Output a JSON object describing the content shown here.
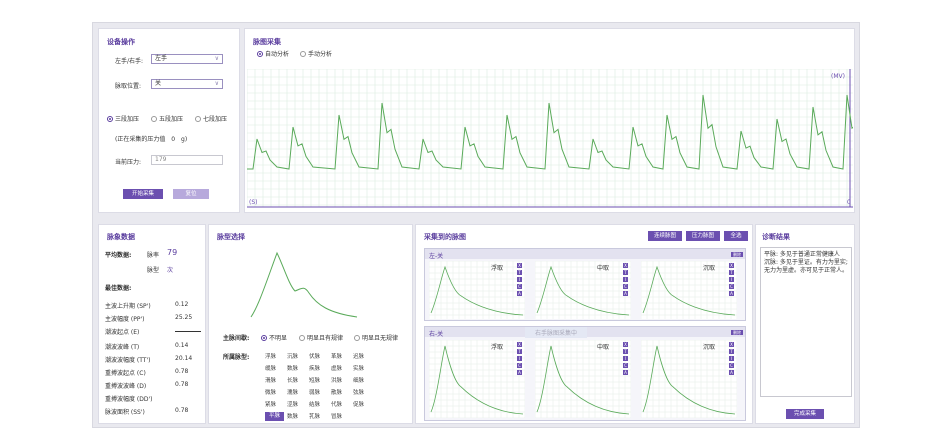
{
  "device": {
    "title": "设备操作",
    "hand_label": "左手/右手:",
    "hand_value": "左手",
    "position_label": "脉取位置:",
    "position_value": "关",
    "pressure_modes": [
      "三段加压",
      "五段加压",
      "七段加压"
    ],
    "pressure_status_prefix": "(正在采集的压力值",
    "pressure_status_value": "0",
    "pressure_status_unit": "g)",
    "current_pressure_label": "当前压力:",
    "current_pressure_value": "179",
    "start_button": "开始采集",
    "reset_button": "复位"
  },
  "capture": {
    "title": "脉图采集",
    "modes": [
      "自动分析",
      "手动分析"
    ],
    "y_unit": "(MV)",
    "x_unit": "(S)",
    "x_zero": "0"
  },
  "pulse_data": {
    "title": "脉象数据",
    "avg_label": "平均数据:",
    "rate_label": "脉率",
    "rate_value": "79",
    "type_label": "脉型",
    "type_value": "次",
    "features_title": "最佳数据:",
    "rows1": [
      {
        "label": "主波上升期 (SP')",
        "value": "0.12"
      },
      {
        "label": "主波幅度 (PP')",
        "value": "25.25"
      },
      {
        "label": "潮波起点 (E)",
        "value": ""
      }
    ],
    "rows2": [
      {
        "label": "潮波波峰 (T)",
        "value": "0.14"
      },
      {
        "label": "潮波波幅度 (TT')",
        "value": "20.14"
      },
      {
        "label": "重搏波起点 (C)",
        "value": "0.78"
      }
    ],
    "rows3": [
      {
        "label": "重搏波波峰 (D)",
        "value": "0.78"
      },
      {
        "label": "重搏波幅度 (DD')",
        "value": ""
      },
      {
        "label": "脉波面积 (SS')",
        "value": "0.78"
      }
    ]
  },
  "pulse_select": {
    "title": "脉型选择",
    "rhythm_label": "主脉间歇:",
    "rhythm_options": [
      "不明显",
      "明显且有规律",
      "明显且无规律"
    ],
    "type_label": "所属脉型:",
    "types": [
      [
        "浮脉",
        "沉脉",
        "伏脉",
        "革脉",
        "迟脉"
      ],
      [
        "缓脉",
        "数脉",
        "疾脉",
        "虚脉",
        "实脉"
      ],
      [
        "滑脉",
        "长脉",
        "短脉",
        "洪脉",
        "细脉"
      ],
      [
        "微脉",
        "濡脉",
        "弱脉",
        "散脉",
        "弦脉"
      ],
      [
        "紧脉",
        "涩脉",
        "结脉",
        "代脉",
        "促脉"
      ],
      [
        "平脉",
        "数脉",
        "芤脉",
        "冒脉",
        ""
      ]
    ],
    "active_type": "平脉"
  },
  "collected": {
    "title": "采集到的脉图",
    "buttons": [
      "连续脉图",
      "压力脉图",
      "全选"
    ],
    "left_label": "左-关",
    "right_label": "右-关",
    "depth_labels": [
      "浮取",
      "中取",
      "沉取"
    ],
    "mini_letters": [
      "X",
      "T",
      "I",
      "C",
      "A"
    ],
    "mini_tag": "删除",
    "overlay_text": "右手脉图采集中"
  },
  "diagnosis": {
    "title": "诊断结果",
    "text": "平脉: 多见于普通正常健康人\n沉脉: 多见于里证。有力为里实;无力为里虚。亦可见于正常人。",
    "complete_button": "完成采集"
  },
  "colors": {
    "accent": "#6b4fb0",
    "wave": "#5aaa5a",
    "grid": "#dcebe0"
  }
}
